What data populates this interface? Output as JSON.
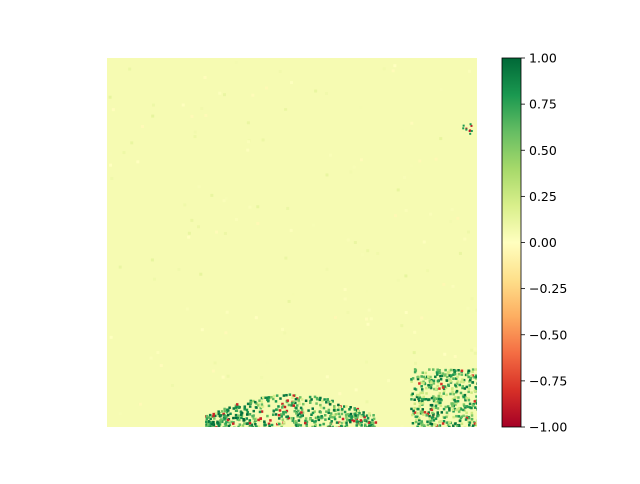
{
  "chart_data": {
    "type": "heatmap",
    "title": "",
    "xlabel": "",
    "ylabel": "",
    "axes_visible": false,
    "colormap": "RdYlGn",
    "colormap_stops": [
      "#a50026",
      "#d73027",
      "#f46d43",
      "#fdae61",
      "#fee08b",
      "#ffffbf",
      "#d9ef8b",
      "#a6d96a",
      "#66bd63",
      "#1a9850",
      "#006837"
    ],
    "background_value": 0.05,
    "colorbar": {
      "vmin": -1.0,
      "vmax": 1.0,
      "ticks": [
        1.0,
        0.75,
        0.5,
        0.25,
        0.0,
        -0.25,
        -0.5,
        -0.75,
        -1.0
      ],
      "tick_labels": [
        "1.00",
        "0.75",
        "0.50",
        "0.25",
        "0.00",
        "−0.25",
        "−0.50",
        "−0.75",
        "−1.00"
      ]
    }
  }
}
